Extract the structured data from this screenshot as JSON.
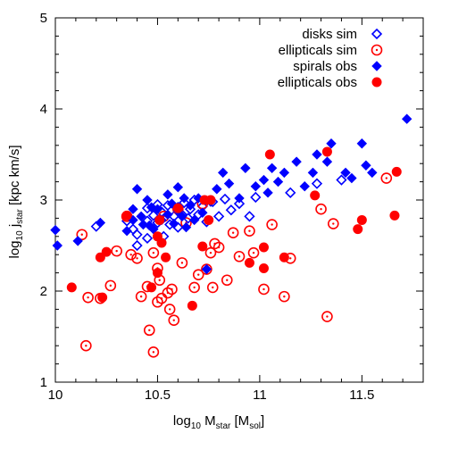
{
  "chart_data": {
    "type": "scatter",
    "xlim": [
      10,
      11.8
    ],
    "ylim": [
      1,
      5
    ],
    "x_ticks": [
      "10",
      "10.5",
      "11",
      "11.5"
    ],
    "y_ticks": [
      "1",
      "2",
      "3",
      "4",
      "5"
    ],
    "xlabel": {
      "main": "log",
      "main_sub": "10",
      "mid": " M",
      "mid_sub": "star",
      "tail": " [M",
      "tail_sub": "sol",
      "end": "]"
    },
    "ylabel": {
      "main": "log",
      "main_sub": "10",
      "mid": " j",
      "mid_sub": "star",
      "tail": " [kpc km/s]"
    },
    "legend_position": "top-right",
    "colors": {
      "blue": "#0000ff",
      "red": "#ff0000"
    },
    "series": [
      {
        "name": "disks sim",
        "marker": "open-diamond",
        "color": "#0000ff",
        "points": [
          [
            10.2,
            2.71
          ],
          [
            10.35,
            2.77
          ],
          [
            10.38,
            2.68
          ],
          [
            10.4,
            2.62
          ],
          [
            10.4,
            2.5
          ],
          [
            10.45,
            2.58
          ],
          [
            10.45,
            2.91
          ],
          [
            10.45,
            2.77
          ],
          [
            10.48,
            2.83
          ],
          [
            10.5,
            2.95
          ],
          [
            10.5,
            2.75
          ],
          [
            10.52,
            2.87
          ],
          [
            10.53,
            2.6
          ],
          [
            10.55,
            2.94
          ],
          [
            10.56,
            2.73
          ],
          [
            10.58,
            2.82
          ],
          [
            10.6,
            2.92
          ],
          [
            10.6,
            2.7
          ],
          [
            10.62,
            2.84
          ],
          [
            10.63,
            2.97
          ],
          [
            10.65,
            2.8
          ],
          [
            10.66,
            2.9
          ],
          [
            10.68,
            3.0
          ],
          [
            10.7,
            2.84
          ],
          [
            10.72,
            2.93
          ],
          [
            10.74,
            2.76
          ],
          [
            10.77,
            2.98
          ],
          [
            10.8,
            2.82
          ],
          [
            10.83,
            3.01
          ],
          [
            10.86,
            2.89
          ],
          [
            10.9,
            2.96
          ],
          [
            10.95,
            2.82
          ],
          [
            10.98,
            3.03
          ],
          [
            11.15,
            3.08
          ],
          [
            11.28,
            3.18
          ],
          [
            11.4,
            3.22
          ]
        ]
      },
      {
        "name": "ellipticals sim",
        "marker": "open-circle-dot",
        "color": "#ff0000",
        "points": [
          [
            10.13,
            2.62
          ],
          [
            10.15,
            1.4
          ],
          [
            10.16,
            1.93
          ],
          [
            10.22,
            1.92
          ],
          [
            10.27,
            2.06
          ],
          [
            10.3,
            2.44
          ],
          [
            10.35,
            2.82
          ],
          [
            10.37,
            2.4
          ],
          [
            10.4,
            2.36
          ],
          [
            10.42,
            1.94
          ],
          [
            10.45,
            2.05
          ],
          [
            10.46,
            1.57
          ],
          [
            10.48,
            2.42
          ],
          [
            10.48,
            1.33
          ],
          [
            10.5,
            2.25
          ],
          [
            10.5,
            1.88
          ],
          [
            10.51,
            2.12
          ],
          [
            10.52,
            1.92
          ],
          [
            10.53,
            2.82
          ],
          [
            10.55,
            1.98
          ],
          [
            10.56,
            1.8
          ],
          [
            10.57,
            2.02
          ],
          [
            10.58,
            1.68
          ],
          [
            10.6,
            2.9
          ],
          [
            10.62,
            2.31
          ],
          [
            10.64,
            2.75
          ],
          [
            10.68,
            2.04
          ],
          [
            10.7,
            2.18
          ],
          [
            10.72,
            2.96
          ],
          [
            10.74,
            2.24
          ],
          [
            10.76,
            2.42
          ],
          [
            10.77,
            2.04
          ],
          [
            10.78,
            2.52
          ],
          [
            10.8,
            2.48
          ],
          [
            10.84,
            2.12
          ],
          [
            10.87,
            2.64
          ],
          [
            10.9,
            2.38
          ],
          [
            10.95,
            2.66
          ],
          [
            10.97,
            2.42
          ],
          [
            11.02,
            2.02
          ],
          [
            11.06,
            2.73
          ],
          [
            11.12,
            1.94
          ],
          [
            11.15,
            2.36
          ],
          [
            11.3,
            2.9
          ],
          [
            11.33,
            1.72
          ],
          [
            11.36,
            2.74
          ],
          [
            11.62,
            3.24
          ]
        ]
      },
      {
        "name": "spirals obs",
        "marker": "filled-diamond",
        "color": "#0000ff",
        "points": [
          [
            10.0,
            2.67
          ],
          [
            10.01,
            2.5
          ],
          [
            10.11,
            2.55
          ],
          [
            10.22,
            2.75
          ],
          [
            10.35,
            2.66
          ],
          [
            10.38,
            2.9
          ],
          [
            10.38,
            2.78
          ],
          [
            10.4,
            3.12
          ],
          [
            10.42,
            2.82
          ],
          [
            10.43,
            2.73
          ],
          [
            10.45,
            3.0
          ],
          [
            10.46,
            2.72
          ],
          [
            10.47,
            2.92
          ],
          [
            10.48,
            2.68
          ],
          [
            10.5,
            2.9
          ],
          [
            10.52,
            2.78
          ],
          [
            10.55,
            3.06
          ],
          [
            10.55,
            2.84
          ],
          [
            10.57,
            2.96
          ],
          [
            10.58,
            2.74
          ],
          [
            10.6,
            3.14
          ],
          [
            10.6,
            2.88
          ],
          [
            10.62,
            2.82
          ],
          [
            10.63,
            3.02
          ],
          [
            10.64,
            2.7
          ],
          [
            10.66,
            2.94
          ],
          [
            10.68,
            2.78
          ],
          [
            10.7,
            3.02
          ],
          [
            10.72,
            2.86
          ],
          [
            10.74,
            2.24
          ],
          [
            10.76,
            2.98
          ],
          [
            10.79,
            3.12
          ],
          [
            10.82,
            3.3
          ],
          [
            10.85,
            3.18
          ],
          [
            10.9,
            3.02
          ],
          [
            10.93,
            3.35
          ],
          [
            10.98,
            3.15
          ],
          [
            11.02,
            3.22
          ],
          [
            11.04,
            3.08
          ],
          [
            11.06,
            3.35
          ],
          [
            11.09,
            3.2
          ],
          [
            11.12,
            3.3
          ],
          [
            11.18,
            3.42
          ],
          [
            11.22,
            3.15
          ],
          [
            11.26,
            3.3
          ],
          [
            11.28,
            3.5
          ],
          [
            11.33,
            3.42
          ],
          [
            11.35,
            3.62
          ],
          [
            11.42,
            3.3
          ],
          [
            11.45,
            3.24
          ],
          [
            11.5,
            3.62
          ],
          [
            11.52,
            3.38
          ],
          [
            11.55,
            3.3
          ],
          [
            11.72,
            3.89
          ]
        ]
      },
      {
        "name": "ellipticals obs",
        "marker": "filled-circle",
        "color": "#ff0000",
        "points": [
          [
            10.08,
            2.04
          ],
          [
            10.22,
            2.37
          ],
          [
            10.23,
            1.93
          ],
          [
            10.25,
            2.43
          ],
          [
            10.35,
            2.83
          ],
          [
            10.47,
            2.04
          ],
          [
            10.5,
            2.2
          ],
          [
            10.5,
            2.6
          ],
          [
            10.51,
            2.78
          ],
          [
            10.52,
            2.53
          ],
          [
            10.54,
            2.37
          ],
          [
            10.6,
            2.91
          ],
          [
            10.67,
            1.84
          ],
          [
            10.72,
            2.49
          ],
          [
            10.73,
            3.0
          ],
          [
            10.75,
            2.78
          ],
          [
            10.76,
            3.0
          ],
          [
            10.95,
            2.31
          ],
          [
            11.02,
            2.25
          ],
          [
            11.02,
            2.48
          ],
          [
            11.05,
            3.5
          ],
          [
            11.12,
            2.37
          ],
          [
            11.27,
            3.05
          ],
          [
            11.33,
            3.53
          ],
          [
            11.48,
            2.68
          ],
          [
            11.5,
            2.78
          ],
          [
            11.66,
            2.83
          ],
          [
            11.67,
            3.31
          ]
        ]
      }
    ]
  }
}
